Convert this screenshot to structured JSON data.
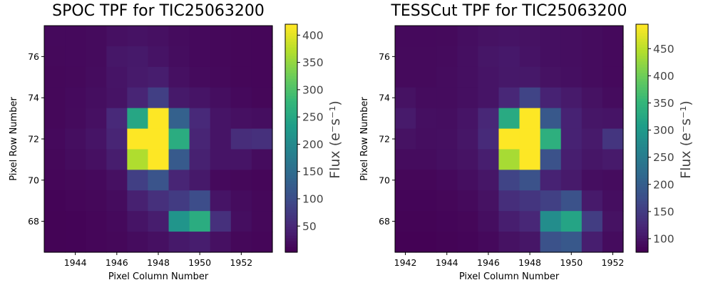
{
  "chart_data": [
    {
      "type": "heatmap",
      "title": "SPOC TPF for TIC25063200",
      "xlabel": "Pixel Column Number",
      "ylabel": "Pixel Row Number",
      "colorbar_label": "Flux (e⁻s⁻¹)",
      "colormap": "viridis",
      "vmin": 2,
      "vmax": 420,
      "x_range": [
        1942.5,
        1953.5
      ],
      "y_range": [
        66.5,
        77.5
      ],
      "x_ticks": [
        1944,
        1946,
        1948,
        1950,
        1952
      ],
      "y_ticks": [
        68,
        70,
        72,
        74,
        76
      ],
      "cbar_ticks": [
        50,
        100,
        150,
        200,
        250,
        300,
        350,
        400
      ],
      "columns": [
        1943,
        1944,
        1945,
        1946,
        1947,
        1948,
        1949,
        1950,
        1951,
        1952,
        1953
      ],
      "rows": [
        77,
        76,
        75,
        74,
        73,
        72,
        71,
        70,
        69,
        68,
        67
      ],
      "values": [
        [
          12,
          12,
          14,
          20,
          22,
          20,
          15,
          12,
          10,
          9,
          8
        ],
        [
          11,
          12,
          14,
          28,
          30,
          24,
          16,
          12,
          10,
          9,
          8
        ],
        [
          10,
          11,
          15,
          25,
          32,
          35,
          20,
          14,
          11,
          9,
          8
        ],
        [
          10,
          13,
          17,
          24,
          45,
          80,
          30,
          25,
          18,
          12,
          9
        ],
        [
          10,
          14,
          20,
          50,
          250,
          420,
          130,
          50,
          25,
          20,
          18
        ],
        [
          12,
          18,
          25,
          45,
          420,
          420,
          260,
          45,
          25,
          55,
          60
        ],
        [
          10,
          15,
          20,
          35,
          370,
          420,
          120,
          40,
          25,
          25,
          15
        ],
        [
          8,
          10,
          12,
          20,
          80,
          110,
          45,
          30,
          12,
          10,
          8
        ],
        [
          6,
          8,
          10,
          15,
          40,
          60,
          75,
          100,
          25,
          15,
          10
        ],
        [
          5,
          6,
          8,
          12,
          25,
          35,
          220,
          260,
          60,
          18,
          10
        ],
        [
          5,
          6,
          8,
          10,
          15,
          20,
          30,
          35,
          20,
          10,
          8
        ]
      ]
    },
    {
      "type": "heatmap",
      "title": "TESSCut TPF for TIC25063200",
      "xlabel": "Pixel Column Number",
      "ylabel": "Pixel Row Number",
      "colorbar_label": "Flux (e⁻s⁻¹)",
      "colormap": "viridis",
      "vmin": 75,
      "vmax": 495,
      "x_range": [
        1941.5,
        1952.5
      ],
      "y_range": [
        66.5,
        77.5
      ],
      "x_ticks": [
        1942,
        1944,
        1946,
        1948,
        1950,
        1952
      ],
      "y_ticks": [
        68,
        70,
        72,
        74,
        76
      ],
      "cbar_ticks": [
        100,
        150,
        200,
        250,
        300,
        350,
        400,
        450
      ],
      "columns": [
        1942,
        1943,
        1944,
        1945,
        1946,
        1947,
        1948,
        1949,
        1950,
        1951,
        1952
      ],
      "rows": [
        77,
        76,
        75,
        74,
        73,
        72,
        71,
        70,
        69,
        68,
        67
      ],
      "values": [
        [
          85,
          85,
          86,
          90,
          95,
          97,
          95,
          92,
          90,
          88,
          85
        ],
        [
          86,
          86,
          87,
          92,
          100,
          103,
          97,
          92,
          90,
          88,
          85
        ],
        [
          86,
          86,
          88,
          92,
          98,
          102,
          102,
          95,
          92,
          88,
          85
        ],
        [
          95,
          88,
          88,
          92,
          98,
          120,
          160,
          115,
          105,
          95,
          88
        ],
        [
          105,
          92,
          90,
          98,
          120,
          330,
          495,
          190,
          115,
          100,
          98
        ],
        [
          95,
          90,
          92,
          100,
          125,
          495,
          495,
          340,
          115,
          105,
          140
        ],
        [
          88,
          88,
          92,
          96,
          110,
          440,
          495,
          180,
          110,
          100,
          105
        ],
        [
          82,
          82,
          85,
          90,
          100,
          160,
          180,
          115,
          105,
          90,
          88
        ],
        [
          80,
          80,
          82,
          86,
          95,
          130,
          140,
          155,
          180,
          105,
          90
        ],
        [
          78,
          78,
          80,
          82,
          90,
          110,
          120,
          280,
          320,
          150,
          95
        ],
        [
          76,
          76,
          78,
          80,
          85,
          95,
          100,
          180,
          190,
          110,
          88
        ]
      ]
    }
  ]
}
